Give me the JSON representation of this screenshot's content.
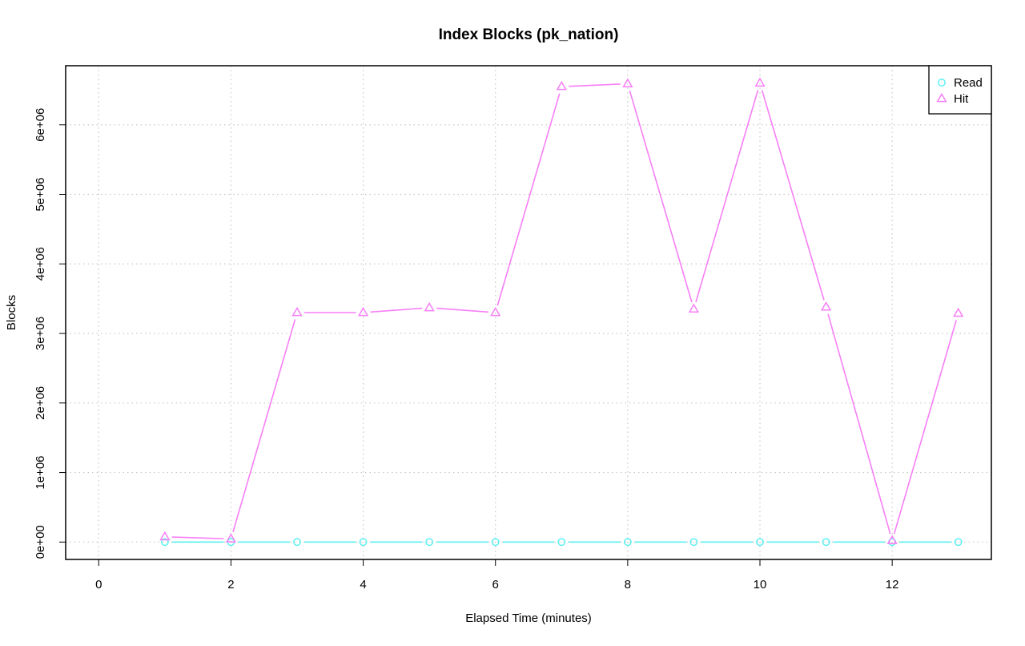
{
  "chart_data": {
    "type": "line",
    "title": "Index Blocks (pk_nation)",
    "xlabel": "Elapsed Time (minutes)",
    "ylabel": "Blocks",
    "xlim": [
      -0.5,
      13.5
    ],
    "ylim": [
      -250000,
      6850000
    ],
    "x_ticks": [
      0,
      2,
      4,
      6,
      8,
      10,
      12
    ],
    "x_tick_labels": [
      "0",
      "2",
      "4",
      "6",
      "8",
      "10",
      "12"
    ],
    "y_ticks": [
      0,
      1000000,
      2000000,
      3000000,
      4000000,
      5000000,
      6000000
    ],
    "y_tick_labels": [
      "0e+00",
      "1e+06",
      "2e+06",
      "3e+06",
      "4e+06",
      "5e+06",
      "6e+06"
    ],
    "grid": true,
    "legend_position": "top-right",
    "x": [
      1,
      2,
      3,
      4,
      5,
      6,
      7,
      8,
      9,
      10,
      11,
      12,
      13
    ],
    "series": [
      {
        "name": "Read",
        "marker": "circle",
        "color": "#5ef0f0",
        "values": [
          0,
          0,
          0,
          0,
          0,
          0,
          0,
          0,
          0,
          0,
          0,
          0,
          0
        ]
      },
      {
        "name": "Hit",
        "marker": "triangle",
        "color": "#f77ff7",
        "values": [
          75000,
          45000,
          3300000,
          3300000,
          3370000,
          3300000,
          6550000,
          6590000,
          3350000,
          6600000,
          3380000,
          20000,
          3290000
        ]
      }
    ]
  }
}
